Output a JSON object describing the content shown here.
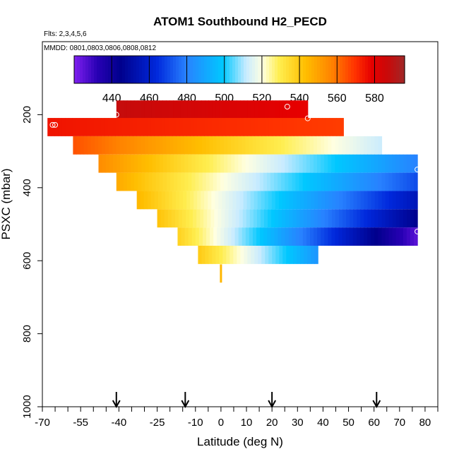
{
  "chart_data": {
    "type": "heatmap",
    "title": "ATOM1 Southbound H2_PECD",
    "flights_note": "Flts: 2,3,4,5,6",
    "dates_note": "MMDD: 0801,0803,0806,0808,0812",
    "xlabel": "Latitude (deg N)",
    "ylabel": "PSXC (mbar)",
    "xlim": [
      -70,
      85
    ],
    "ylim": [
      1000,
      0
    ],
    "x_ticks": [
      -70,
      -55,
      -40,
      -25,
      -10,
      0,
      10,
      20,
      30,
      40,
      50,
      60,
      70,
      80
    ],
    "y_ticks": [
      200,
      400,
      600,
      800,
      1000
    ],
    "colorbar": {
      "min": 420,
      "max": 596,
      "ticks": [
        440,
        460,
        480,
        500,
        520,
        540,
        560,
        580
      ]
    },
    "arrows_at_lat": [
      -41,
      -14,
      20,
      61
    ],
    "rows": [
      {
        "p": 186,
        "x0": -41,
        "x1": 34,
        "v0": 588,
        "v1": 578
      },
      {
        "p": 234,
        "x0": -68,
        "x1": 48,
        "v0": 575,
        "v1": 568
      },
      {
        "p": 284,
        "x0": -58,
        "x1": 63,
        "v0": 565,
        "v1": 512
      },
      {
        "p": 334,
        "x0": -48,
        "x1": 77,
        "v0": 555,
        "v1": 480
      },
      {
        "p": 384,
        "x0": -41,
        "x1": 77,
        "v0": 548,
        "v1": 470
      },
      {
        "p": 434,
        "x0": -33,
        "x1": 77,
        "v0": 545,
        "v1": 455
      },
      {
        "p": 484,
        "x0": -25,
        "x1": 77,
        "v0": 542,
        "v1": 445
      },
      {
        "p": 534,
        "x0": -17,
        "x1": 77,
        "v0": 538,
        "v1": 425
      },
      {
        "p": 584,
        "x0": -9,
        "x1": 38,
        "v0": 540,
        "v1": 485
      }
    ],
    "min_at_lat": -1,
    "bottom_trace": {
      "lat": 0,
      "p_top": 610,
      "p_bottom": 660,
      "value": 545
    },
    "flight_markers": [
      {
        "lat": -41,
        "p": 200
      },
      {
        "lat": 26,
        "p": 178
      },
      {
        "lat": 34,
        "p": 210
      },
      {
        "lat": -66,
        "p": 228
      },
      {
        "lat": -65,
        "p": 228
      },
      {
        "lat": 77,
        "p": 350
      },
      {
        "lat": 77,
        "p": 520
      }
    ]
  }
}
